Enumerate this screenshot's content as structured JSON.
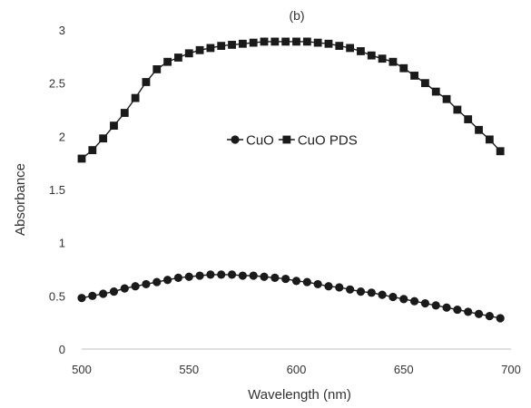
{
  "chart_data": {
    "type": "line",
    "title": "(b)",
    "xlabel": "Wavelength (nm)",
    "ylabel": "Absorbance",
    "xlim": [
      500,
      700
    ],
    "ylim": [
      0,
      3
    ],
    "xticks": [
      500,
      550,
      600,
      650,
      700
    ],
    "yticks": [
      0,
      0.5,
      1,
      1.5,
      2,
      2.5,
      3
    ],
    "grid": false,
    "legend_position": "center",
    "x": [
      500,
      505,
      510,
      515,
      520,
      525,
      530,
      535,
      540,
      545,
      550,
      555,
      560,
      565,
      570,
      575,
      580,
      585,
      590,
      595,
      600,
      605,
      610,
      615,
      620,
      625,
      630,
      635,
      640,
      645,
      650,
      655,
      660,
      665,
      670,
      675,
      680,
      685,
      690,
      695
    ],
    "series": [
      {
        "name": "CuO",
        "marker": "circle",
        "color": "#1a1a1a",
        "values": [
          0.48,
          0.5,
          0.52,
          0.54,
          0.57,
          0.59,
          0.61,
          0.63,
          0.65,
          0.67,
          0.68,
          0.69,
          0.7,
          0.7,
          0.7,
          0.69,
          0.69,
          0.68,
          0.67,
          0.66,
          0.64,
          0.63,
          0.61,
          0.59,
          0.58,
          0.56,
          0.54,
          0.53,
          0.51,
          0.49,
          0.47,
          0.45,
          0.43,
          0.41,
          0.39,
          0.37,
          0.35,
          0.33,
          0.31,
          0.29
        ]
      },
      {
        "name": "CuO PDS",
        "marker": "square",
        "color": "#1a1a1a",
        "values": [
          1.79,
          1.87,
          1.98,
          2.1,
          2.22,
          2.36,
          2.51,
          2.63,
          2.7,
          2.74,
          2.78,
          2.81,
          2.83,
          2.85,
          2.86,
          2.87,
          2.88,
          2.89,
          2.89,
          2.89,
          2.89,
          2.89,
          2.88,
          2.87,
          2.85,
          2.83,
          2.8,
          2.76,
          2.73,
          2.7,
          2.64,
          2.57,
          2.5,
          2.42,
          2.35,
          2.25,
          2.16,
          2.06,
          1.97,
          1.86
        ]
      }
    ]
  }
}
